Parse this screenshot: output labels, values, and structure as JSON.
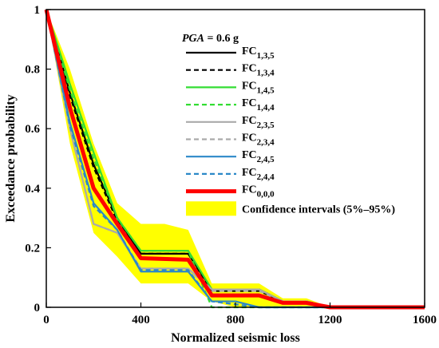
{
  "chart_data": {
    "type": "line",
    "title": "",
    "xlabel": "Normalized seismic loss",
    "ylabel": "Exceedance probability",
    "xlim": [
      0,
      1600
    ],
    "ylim": [
      0,
      1
    ],
    "xticks": [
      0,
      400,
      800,
      1200,
      1600
    ],
    "xtick_labels": [
      "0",
      "400",
      "800",
      "1200",
      "1600"
    ],
    "yticks": [
      0,
      0.2,
      0.4,
      0.6,
      0.8,
      1
    ],
    "ytick_labels": [
      "0",
      "0.2",
      "0.4",
      "0.6",
      "0.8",
      "1"
    ],
    "grid": false,
    "legend_position": "top-right",
    "legend_title": {
      "italic": "PGA",
      "rest": " = 0.6 g"
    },
    "series": [
      {
        "name": "FC1,3,5",
        "label_base": "FC",
        "label_sub": "1,3,5",
        "color": "#000000",
        "dash": "solid",
        "x": [
          0,
          100,
          200,
          300,
          400,
          600,
          700,
          900,
          1000,
          1100,
          1200,
          1600
        ],
        "y": [
          1,
          0.72,
          0.48,
          0.3,
          0.18,
          0.18,
          0.06,
          0.06,
          0.02,
          0.02,
          0,
          0
        ]
      },
      {
        "name": "FC1,3,4",
        "label_base": "FC",
        "label_sub": "1,3,4",
        "color": "#000000",
        "dash": "dashed",
        "x": [
          0,
          100,
          200,
          300,
          400,
          600,
          700,
          900,
          1000,
          1100,
          1200,
          1600
        ],
        "y": [
          1,
          0.71,
          0.47,
          0.29,
          0.18,
          0.18,
          0.055,
          0.055,
          0.02,
          0.02,
          0,
          0
        ]
      },
      {
        "name": "FC1,4,5",
        "label_base": "FC",
        "label_sub": "1,4,5",
        "color": "#33dd33",
        "dash": "solid",
        "x": [
          0,
          100,
          200,
          300,
          400,
          600,
          700,
          900,
          1000,
          1100,
          1200,
          1600
        ],
        "y": [
          1,
          0.75,
          0.52,
          0.3,
          0.19,
          0.19,
          0.06,
          0.06,
          0.02,
          0.02,
          0,
          0
        ]
      },
      {
        "name": "FC1,4,4",
        "label_base": "FC",
        "label_sub": "1,4,4",
        "color": "#33dd33",
        "dash": "dashed",
        "x": [
          0,
          100,
          200,
          300,
          400,
          600,
          700,
          900,
          1000,
          1100,
          1200,
          1600
        ],
        "y": [
          1,
          0.73,
          0.5,
          0.3,
          0.19,
          0.19,
          0,
          0,
          0,
          0,
          0,
          0
        ]
      },
      {
        "name": "FC2,3,5",
        "label_base": "FC",
        "label_sub": "2,3,5",
        "color": "#aaaaaa",
        "dash": "solid",
        "x": [
          0,
          100,
          200,
          300,
          400,
          600,
          700,
          900,
          1000,
          1100,
          1200,
          1600
        ],
        "y": [
          1,
          0.6,
          0.28,
          0.25,
          0.13,
          0.13,
          0.06,
          0.06,
          0.02,
          0.02,
          0,
          0
        ]
      },
      {
        "name": "FC2,3,4",
        "label_base": "FC",
        "label_sub": "2,3,4",
        "color": "#aaaaaa",
        "dash": "dashed",
        "x": [
          0,
          100,
          200,
          300,
          400,
          600,
          700,
          900,
          1000,
          1100,
          1200,
          1600
        ],
        "y": [
          1,
          0.6,
          0.28,
          0.25,
          0.13,
          0.13,
          0.055,
          0.055,
          0.02,
          0.02,
          0,
          0
        ]
      },
      {
        "name": "FC2,4,5",
        "label_base": "FC",
        "label_sub": "2,4,5",
        "color": "#2b88c8",
        "dash": "solid",
        "x": [
          0,
          100,
          200,
          300,
          400,
          600,
          700,
          800,
          900,
          1200,
          1600
        ],
        "y": [
          1,
          0.62,
          0.35,
          0.26,
          0.12,
          0.12,
          0.02,
          0.02,
          0,
          0,
          0
        ]
      },
      {
        "name": "FC2,4,4",
        "label_base": "FC",
        "label_sub": "2,4,4",
        "color": "#2b88c8",
        "dash": "dashed",
        "x": [
          0,
          100,
          200,
          300,
          400,
          600,
          700,
          900,
          1200,
          1600
        ],
        "y": [
          1,
          0.61,
          0.34,
          0.26,
          0.125,
          0.125,
          0.02,
          0,
          0,
          0
        ]
      },
      {
        "name": "FC0,0,0",
        "label_base": "FC",
        "label_sub": "0,0,0",
        "color": "#ff0000",
        "dash": "solid",
        "thick": true,
        "x": [
          0,
          100,
          200,
          300,
          400,
          600,
          700,
          900,
          1000,
          1100,
          1200,
          1600
        ],
        "y": [
          1,
          0.67,
          0.4,
          0.28,
          0.165,
          0.16,
          0.04,
          0.04,
          0.015,
          0.015,
          0,
          0
        ]
      }
    ],
    "confidence_band": {
      "name": "Confidence intervals (5%–95%)",
      "color": "#ffff00",
      "x": [
        0,
        100,
        200,
        300,
        400,
        500,
        600,
        700,
        800,
        900,
        1000,
        1100,
        1200,
        1600
      ],
      "lower": [
        1,
        0.55,
        0.25,
        0.17,
        0.08,
        0.08,
        0.08,
        0.02,
        0,
        0,
        0,
        0,
        0,
        0
      ],
      "upper": [
        1,
        0.8,
        0.55,
        0.35,
        0.28,
        0.28,
        0.26,
        0.08,
        0.08,
        0.08,
        0.03,
        0.03,
        0,
        0
      ]
    }
  }
}
